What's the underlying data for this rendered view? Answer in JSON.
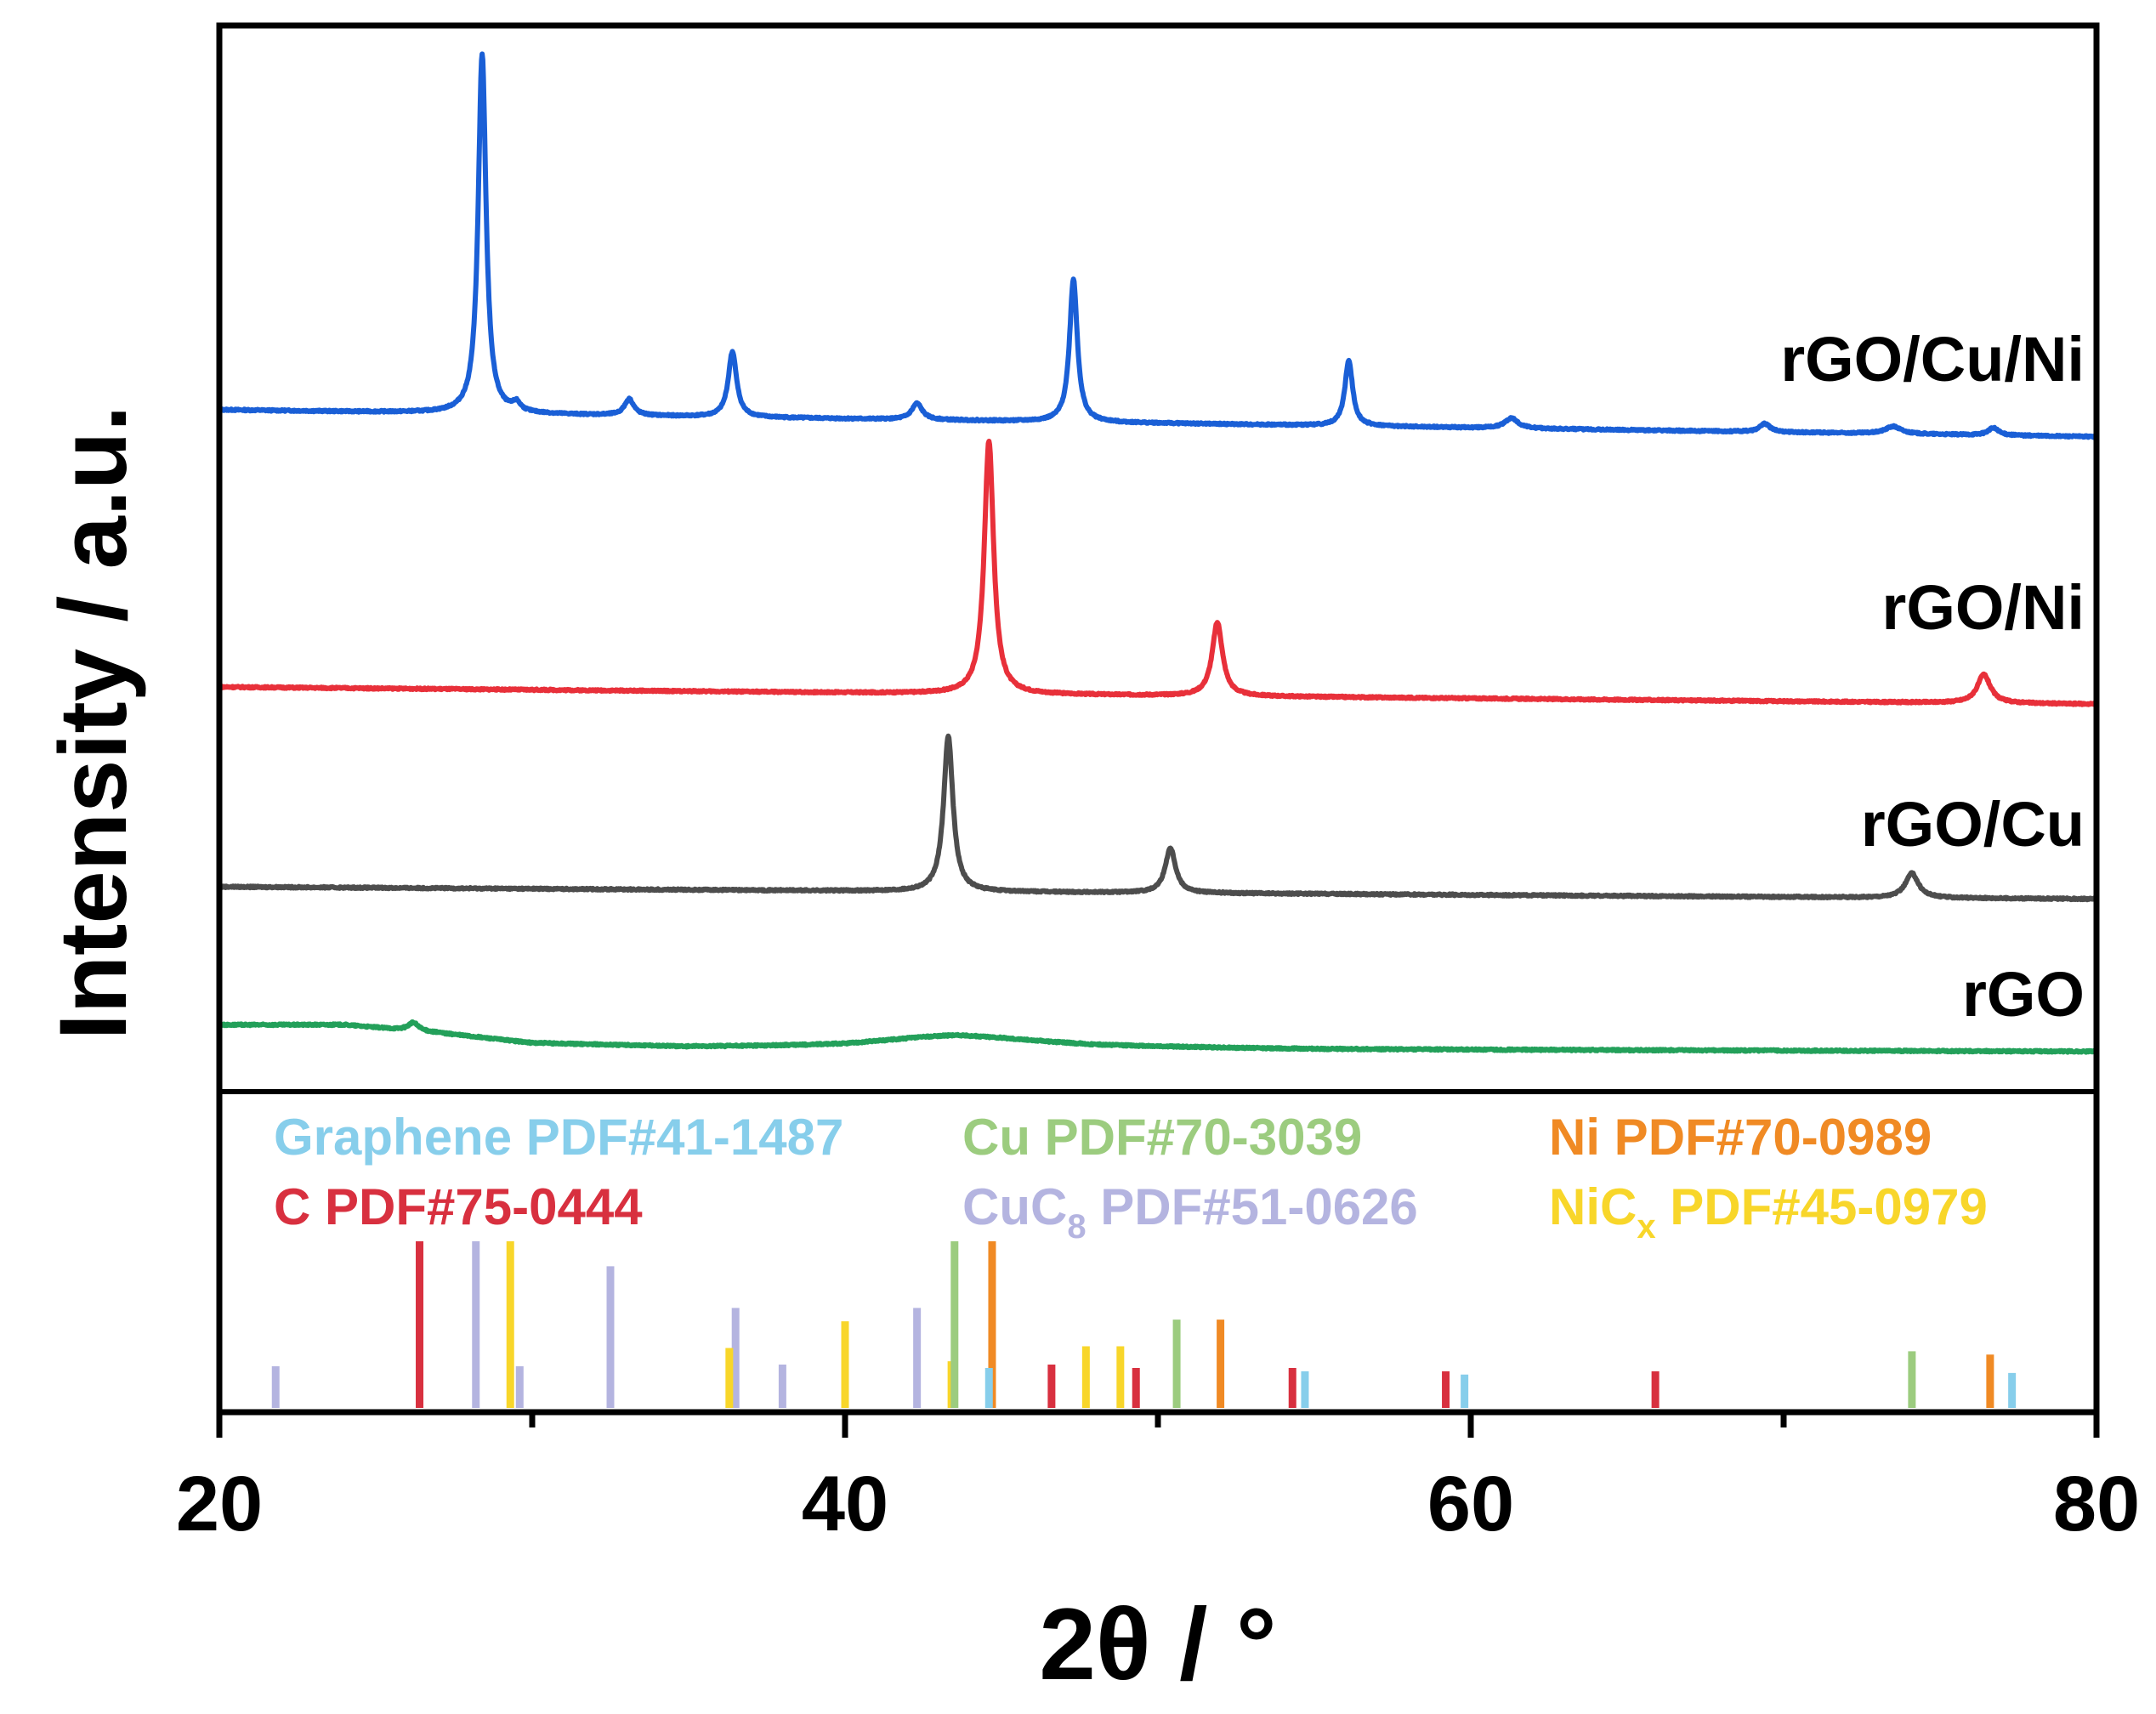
{
  "chart_data": {
    "type": "line",
    "ylabel": "Intensity / a.u.",
    "xlabel": "2θ / °",
    "xlim": [
      20,
      80
    ],
    "xticks": [
      "20",
      "40",
      "60",
      "80"
    ],
    "series": [
      {
        "name": "rGO/Cu/Ni",
        "color": "#1a5fd6",
        "baseline": 0.1,
        "slope": -0.0011,
        "peaks": [
          [
            28.4,
            0.88,
            0.15
          ],
          [
            29.5,
            0.02,
            0.15
          ],
          [
            33.1,
            0.04,
            0.18
          ],
          [
            36.4,
            0.16,
            0.16
          ],
          [
            42.3,
            0.04,
            0.2
          ],
          [
            47.3,
            0.35,
            0.15
          ],
          [
            56.1,
            0.16,
            0.15
          ],
          [
            61.3,
            0.025,
            0.25
          ],
          [
            69.4,
            0.02,
            0.2
          ],
          [
            73.5,
            0.018,
            0.3
          ],
          [
            76.7,
            0.018,
            0.2
          ]
        ]
      },
      {
        "name": "rGO/Ni",
        "color": "#e8303a",
        "baseline": 0.1,
        "slope": -0.0007,
        "peaks": [
          [
            44.6,
            0.62,
            0.18
          ],
          [
            51.9,
            0.18,
            0.2
          ],
          [
            76.4,
            0.07,
            0.25
          ]
        ]
      },
      {
        "name": "rGO/Cu",
        "color": "#4d4d4d",
        "baseline": 0.1,
        "slope": -0.0005,
        "peaks": [
          [
            43.3,
            0.38,
            0.18
          ],
          [
            50.4,
            0.11,
            0.2
          ],
          [
            74.1,
            0.06,
            0.25
          ]
        ]
      },
      {
        "name": "rGO",
        "color": "#23a05a",
        "baseline": 0.09,
        "slope": -0.0003,
        "peaks": [
          [
            26.2,
            0.02,
            0.2
          ],
          [
            43.5,
            0.02,
            3.5
          ]
        ],
        "hump": [
          [
            20,
            0.12
          ],
          [
            24,
            0.12
          ],
          [
            27,
            0.1
          ],
          [
            30,
            0.075
          ],
          [
            35,
            0.065
          ],
          [
            40,
            0.065
          ],
          [
            43.5,
            0.075
          ],
          [
            48,
            0.065
          ],
          [
            55,
            0.06
          ],
          [
            80,
            0.055
          ]
        ]
      }
    ],
    "reference_labels": [
      {
        "name": "Graphene",
        "pdf": "PDF#41-1487",
        "color": "#87ceeb"
      },
      {
        "name": "C",
        "pdf": "PDF#75-0444",
        "color": "#d8303f"
      },
      {
        "name": "Cu",
        "pdf": "PDF#70-3039",
        "color": "#9ccc7f"
      },
      {
        "name": "CuC8",
        "name_main": "CuC",
        "name_sub": "8",
        "pdf": "PDF#51-0626",
        "color": "#b4b4e0"
      },
      {
        "name": "Ni",
        "pdf": "PDF#70-0989",
        "color": "#f08a24"
      },
      {
        "name": "NiCx",
        "name_main": "NiC",
        "name_sub": "x",
        "pdf": "PDF#45-0979",
        "color": "#f8d62a"
      }
    ],
    "reference_lines": [
      {
        "phase": "CuC8",
        "color": "#b4b4e0",
        "sticks": [
          [
            21.8,
            0.25
          ],
          [
            28.2,
            1.0
          ],
          [
            29.6,
            0.25
          ],
          [
            32.5,
            0.85
          ],
          [
            36.5,
            0.6
          ],
          [
            38.0,
            0.26
          ],
          [
            42.3,
            0.6
          ]
        ]
      },
      {
        "phase": "C",
        "color": "#d8303f",
        "sticks": [
          [
            26.4,
            1.0
          ],
          [
            46.6,
            0.26
          ],
          [
            49.3,
            0.24
          ],
          [
            54.3,
            0.24
          ],
          [
            59.2,
            0.22
          ],
          [
            65.9,
            0.22
          ]
        ]
      },
      {
        "phase": "NiCx",
        "color": "#f8d62a",
        "sticks": [
          [
            29.3,
            1.0
          ],
          [
            36.3,
            0.36
          ],
          [
            40.0,
            0.52
          ],
          [
            43.4,
            0.28
          ],
          [
            47.7,
            0.37
          ],
          [
            48.8,
            0.37
          ]
        ]
      },
      {
        "phase": "Cu",
        "color": "#9ccc7f",
        "sticks": [
          [
            43.5,
            1.0
          ],
          [
            50.6,
            0.53
          ],
          [
            74.1,
            0.34
          ]
        ]
      },
      {
        "phase": "Ni",
        "color": "#f08a24",
        "sticks": [
          [
            44.7,
            1.0
          ],
          [
            52.0,
            0.53
          ],
          [
            76.6,
            0.32
          ]
        ]
      },
      {
        "phase": "Graphene",
        "color": "#87ceeb",
        "sticks": [
          [
            44.6,
            0.24
          ],
          [
            54.7,
            0.22
          ],
          [
            59.8,
            0.2
          ],
          [
            77.3,
            0.21
          ]
        ]
      }
    ]
  }
}
